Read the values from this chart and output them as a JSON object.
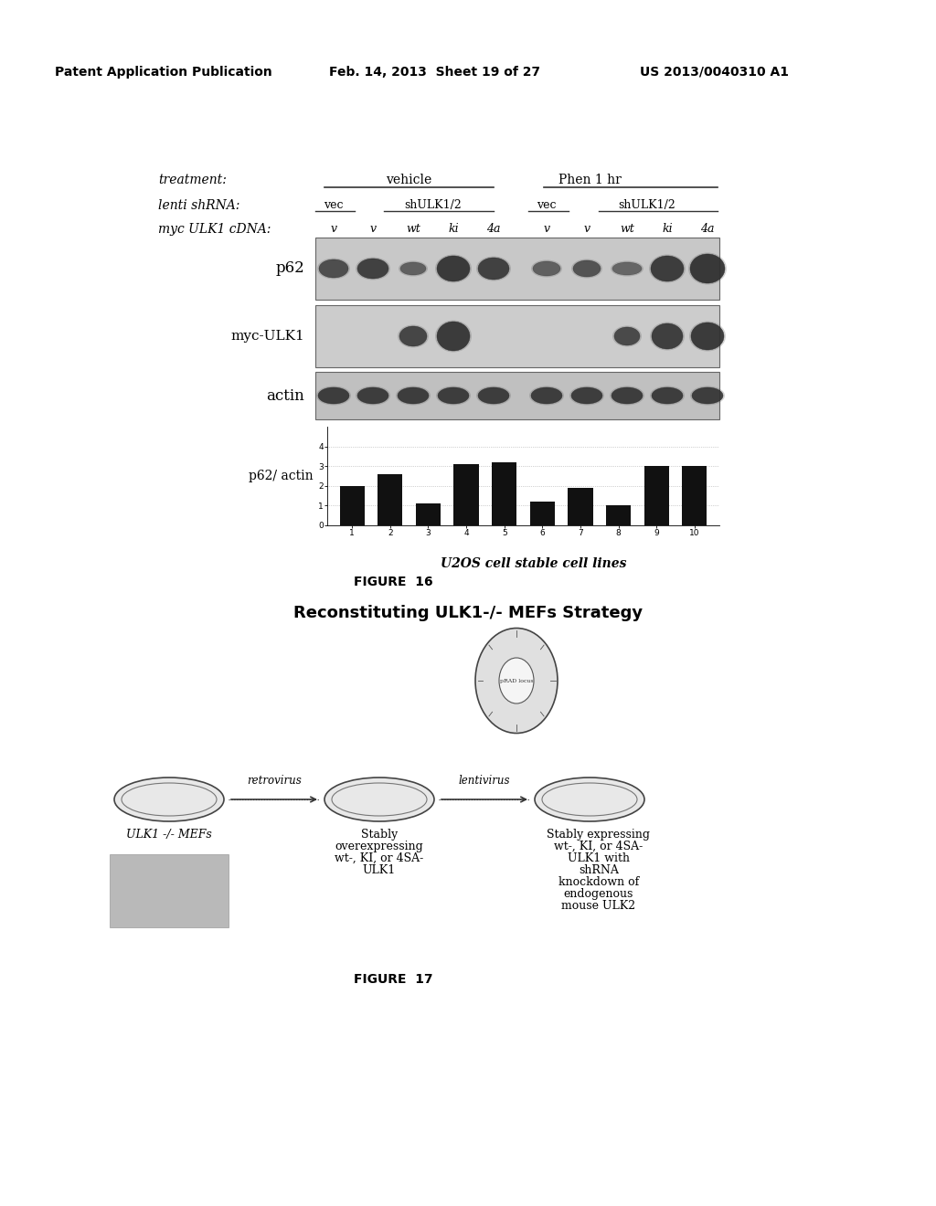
{
  "page_header_left": "Patent Application Publication",
  "page_header_mid": "Feb. 14, 2013  Sheet 19 of 27",
  "page_header_right": "US 2013/0040310 A1",
  "fig16_title_right": "U2OS cell stable cell lines",
  "fig16_label": "FIGURE  16",
  "fig17_title": "Reconstituting ULK1-/- MEFs Strategy",
  "fig17_label": "FIGURE  17",
  "treatment_label": "treatment:",
  "treatment_vehicle": "vehicle",
  "treatment_phen": "Phen 1 hr",
  "lenti_label": "lenti shRNA:",
  "lenti_vec1": "vec",
  "lenti_shulk": "shULK1/2",
  "lenti_vec2": "vec",
  "lenti_shulk2": "shULK1/2",
  "myc_label": "myc ULK1 cDNA:",
  "myc_vals": [
    "v",
    "v",
    "wt",
    "ki",
    "4a",
    "v",
    "v",
    "wt",
    "ki",
    "4a"
  ],
  "bar_ylabel": "p62/ actin",
  "bar_values": [
    2.0,
    2.6,
    1.1,
    3.1,
    3.2,
    1.2,
    1.9,
    1.0,
    3.0,
    3.0
  ],
  "bar_xticks": [
    "1",
    "2",
    "3",
    "4",
    "5",
    "6",
    "7",
    "8",
    "9",
    "10"
  ],
  "bar_ylim": [
    0,
    5
  ],
  "bar_yticks": [
    0,
    1,
    2,
    3,
    4
  ],
  "bg_color": "#ffffff",
  "text_color": "#000000",
  "bar_color": "#111111",
  "fig17_dish_label1": "ULK1 -/- MEFs",
  "fig17_arrow1": "retrovirus",
  "fig17_dish_label2_lines": [
    "Stably",
    "overexpressing",
    "wt-, KI, or 4SA-",
    "ULK1"
  ],
  "fig17_arrow2": "lentivirus",
  "fig17_dish_label3_lines": [
    "Stably expressing",
    "wt-, KI, or 4SA-",
    "ULK1 with",
    "shRNA",
    "knockdown of",
    "endogenous",
    "mouse ULK2"
  ]
}
